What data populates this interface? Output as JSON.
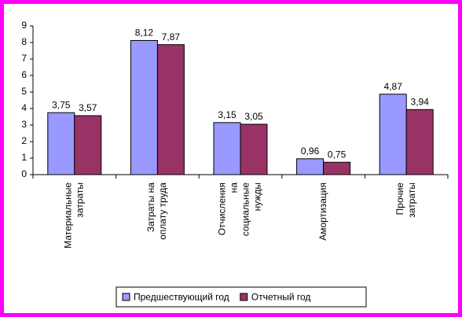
{
  "chart_data": {
    "type": "bar",
    "categories": [
      [
        "Материальные",
        "затраты"
      ],
      [
        "Затраты на",
        "оплату труда"
      ],
      [
        "Отчисления",
        "на",
        "социальные",
        "нужды"
      ],
      [
        "Амортизация"
      ],
      [
        "Прочие",
        "затраты"
      ]
    ],
    "series": [
      {
        "name": "Предшествующий год",
        "color": "#9999ff",
        "values": [
          3.75,
          8.12,
          3.15,
          0.96,
          4.87
        ],
        "value_labels": [
          "3,75",
          "8,12",
          "3,15",
          "0,96",
          "4,87"
        ]
      },
      {
        "name": "Отчетный год",
        "color": "#993366",
        "values": [
          3.57,
          7.87,
          3.05,
          0.75,
          3.94
        ],
        "value_labels": [
          "3,57",
          "7,87",
          "3,05",
          "0,75",
          "3,94"
        ]
      }
    ],
    "ylim": [
      0,
      9
    ],
    "yticks": [
      0,
      1,
      2,
      3,
      4,
      5,
      6,
      7,
      8,
      9
    ],
    "legend": "bottom"
  }
}
